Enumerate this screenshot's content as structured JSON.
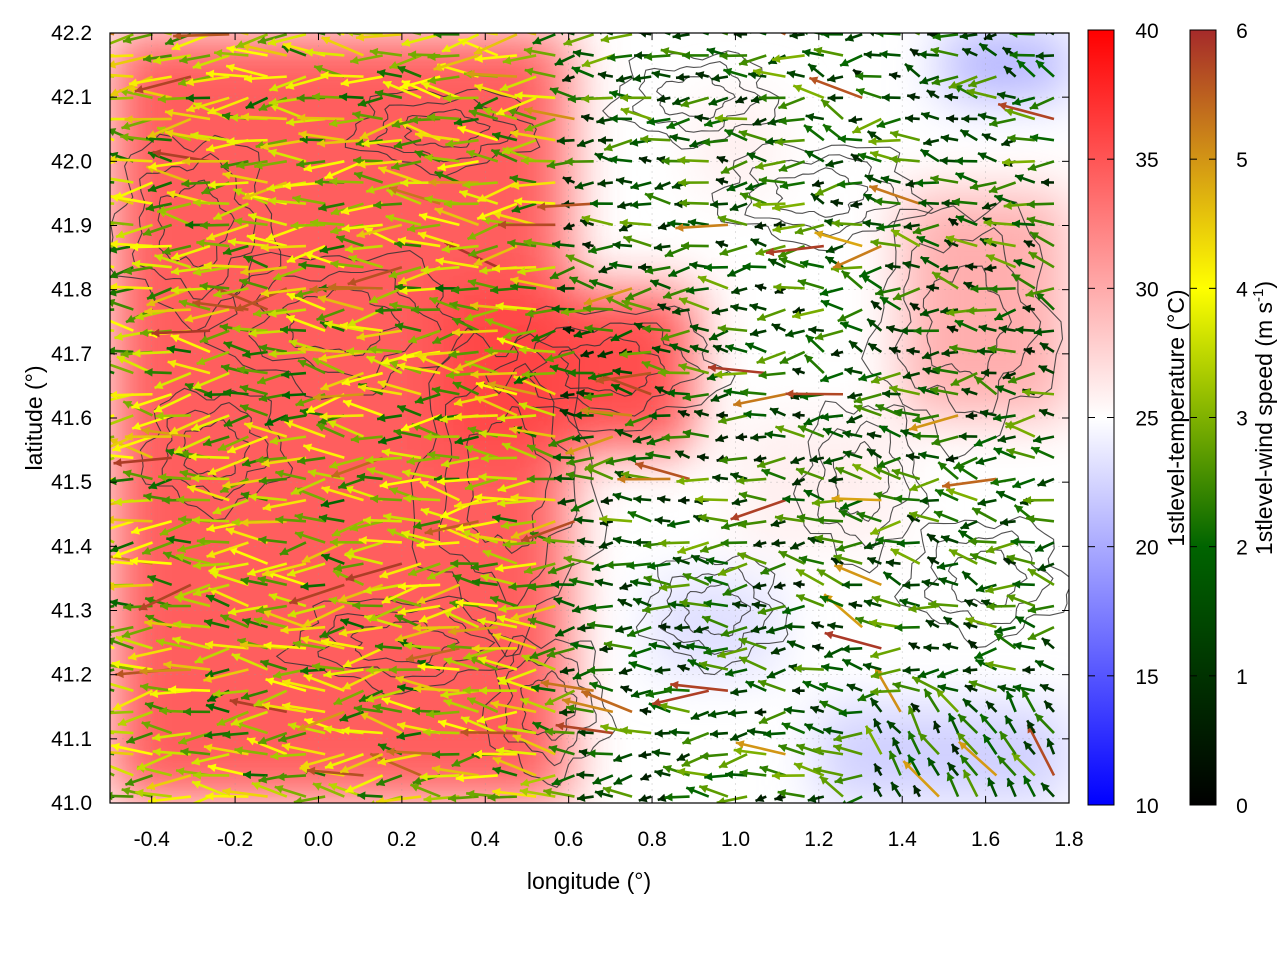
{
  "chart_data": {
    "type": "heatmap",
    "title": "",
    "xlabel": "longitude (°)",
    "ylabel": "latitude (°)",
    "xlim": [
      -0.5,
      1.8
    ],
    "ylim": [
      41.0,
      42.2
    ],
    "x_ticks": [
      "-0.4",
      "-0.2",
      "0.0",
      "0.2",
      "0.4",
      "0.6",
      "0.8",
      "1.0",
      "1.2",
      "1.4",
      "1.6",
      "1.8"
    ],
    "x_tick_values": [
      -0.4,
      -0.2,
      0.0,
      0.2,
      0.4,
      0.6,
      0.8,
      1.0,
      1.2,
      1.4,
      1.6,
      1.8
    ],
    "y_ticks": [
      "41.0",
      "41.1",
      "41.2",
      "41.3",
      "41.4",
      "41.5",
      "41.6",
      "41.7",
      "41.8",
      "41.9",
      "42.0",
      "42.1",
      "42.2"
    ],
    "y_tick_values": [
      41.0,
      41.1,
      41.2,
      41.3,
      41.4,
      41.5,
      41.6,
      41.7,
      41.8,
      41.9,
      42.0,
      42.1,
      42.2
    ],
    "grid": true,
    "layers": [
      {
        "name": "1stlevel-temperature",
        "kind": "color field"
      },
      {
        "name": "1stlevel-wind speed",
        "kind": "vector arrows"
      },
      {
        "name": "terrain",
        "kind": "contour lines"
      }
    ],
    "temperature_colorbar": {
      "label": "1stlevel-temperature (°C)",
      "range": [
        10,
        40
      ],
      "ticks": [
        "10",
        "15",
        "20",
        "25",
        "30",
        "35",
        "40"
      ],
      "tick_values": [
        10,
        15,
        20,
        25,
        30,
        35,
        40
      ],
      "colors": [
        "#0000ff",
        "#ffffff",
        "#ff0000"
      ]
    },
    "wind_colorbar": {
      "label_main": "1stlevel-wind speed (m s",
      "label_sup": "-1",
      "label_end": ")",
      "range": [
        0,
        6
      ],
      "ticks": [
        "0",
        "1",
        "2",
        "3",
        "4",
        "5",
        "6"
      ],
      "tick_values": [
        0,
        1,
        2,
        3,
        4,
        5,
        6
      ],
      "colors": [
        "#000000",
        "#006400",
        "#ffff00",
        "#a52a2a"
      ]
    },
    "temperature_regions": [
      {
        "lon": [
          -0.5,
          0.6
        ],
        "lat": [
          41.0,
          42.2
        ],
        "temp_c": 35
      },
      {
        "lon": [
          0.3,
          0.9
        ],
        "lat": [
          41.55,
          41.8
        ],
        "temp_c": 36
      },
      {
        "lon": [
          1.0,
          1.4
        ],
        "lat": [
          41.4,
          41.6
        ],
        "temp_c": 26
      },
      {
        "lon": [
          0.8,
          1.1
        ],
        "lat": [
          41.2,
          41.35
        ],
        "temp_c": 23
      },
      {
        "lon": [
          1.2,
          1.8
        ],
        "lat": [
          41.0,
          41.15
        ],
        "temp_c": 22
      },
      {
        "lon": [
          1.5,
          1.8
        ],
        "lat": [
          42.1,
          42.2
        ],
        "temp_c": 20
      },
      {
        "lon": [
          1.4,
          1.8
        ],
        "lat": [
          41.6,
          41.95
        ],
        "temp_c": 30
      },
      {
        "lon": [
          0.9,
          1.1
        ],
        "lat": [
          41.95,
          42.1
        ],
        "temp_c": 26
      }
    ],
    "wind_field": {
      "prevailing_direction": "westward",
      "speed_range_ms": [
        0,
        6
      ],
      "typical_speed_ms": 2.5
    }
  }
}
